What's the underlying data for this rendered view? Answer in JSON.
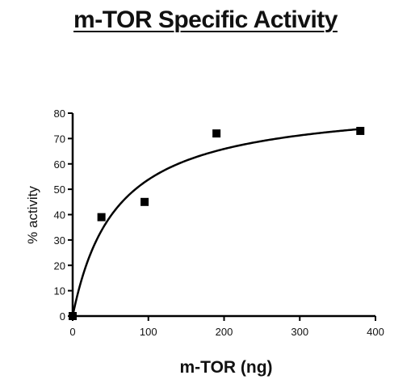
{
  "chart_data": {
    "type": "scatter",
    "title": "m-TOR Specific Activity",
    "xlabel": "m-TOR (ng)",
    "ylabel": "% activity",
    "xlim": [
      0,
      400
    ],
    "ylim": [
      0,
      80
    ],
    "xticks": [
      0,
      100,
      200,
      300,
      400
    ],
    "yticks": [
      0,
      10,
      20,
      30,
      40,
      50,
      60,
      70,
      80
    ],
    "grid": false,
    "legend": "none",
    "series": [
      {
        "marker": "square",
        "color": "#000000",
        "x": [
          0,
          38,
          95,
          190,
          380
        ],
        "y": [
          0,
          39,
          45,
          72,
          73
        ]
      }
    ],
    "fit_curve": {
      "model": "hyperbolic",
      "vmax": 85,
      "km": 58,
      "color": "#000000"
    }
  }
}
